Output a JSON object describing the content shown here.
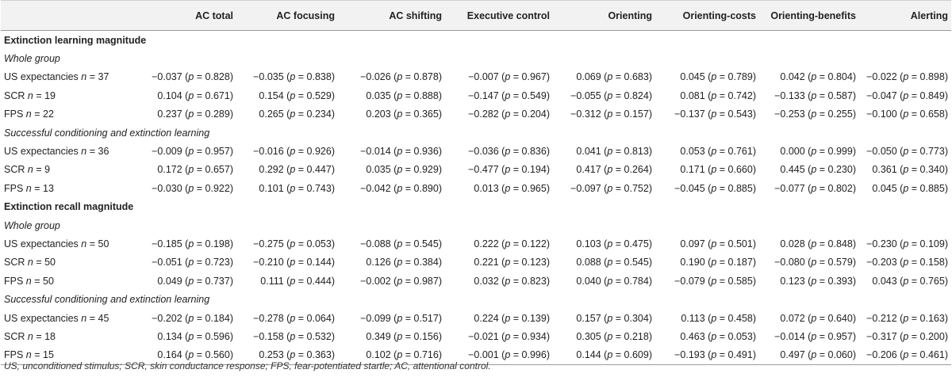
{
  "headers": [
    "",
    "AC total",
    "AC focusing",
    "AC shifting",
    "Executive control",
    "Orienting",
    "Orienting-costs",
    "Orienting-benefits",
    "Alerting"
  ],
  "sections": [
    {
      "title": "Extinction learning magnitude",
      "groups": [
        {
          "title": "Whole group",
          "rows": [
            {
              "label": "US expectancies",
              "n": "37",
              "cells": [
                [
                  "−0.037",
                  "0.828"
                ],
                [
                  "−0.035",
                  "0.838"
                ],
                [
                  "−0.026",
                  "0.878"
                ],
                [
                  "−0.007",
                  "0.967"
                ],
                [
                  "0.069",
                  "0.683"
                ],
                [
                  "0.045",
                  "0.789"
                ],
                [
                  "0.042",
                  "0.804"
                ],
                [
                  "−0.022",
                  "0.898"
                ]
              ]
            },
            {
              "label": "SCR",
              "n": "19",
              "cells": [
                [
                  "0.104",
                  "0.671"
                ],
                [
                  "0.154",
                  "0.529"
                ],
                [
                  "0.035",
                  "0.888"
                ],
                [
                  "−0.147",
                  "0.549"
                ],
                [
                  "−0.055",
                  "0.824"
                ],
                [
                  "0.081",
                  "0.742"
                ],
                [
                  "−0.133",
                  "0.587"
                ],
                [
                  "−0.047",
                  "0.849"
                ]
              ]
            },
            {
              "label": "FPS",
              "n": "22",
              "cells": [
                [
                  "0.237",
                  "0.289"
                ],
                [
                  "0.265",
                  "0.234"
                ],
                [
                  "0.203",
                  "0.365"
                ],
                [
                  "−0.282",
                  "0.204"
                ],
                [
                  "−0.312",
                  "0.157"
                ],
                [
                  "−0.137",
                  "0.543"
                ],
                [
                  "−0.253",
                  "0.255"
                ],
                [
                  "−0.100",
                  "0.658"
                ]
              ]
            }
          ]
        },
        {
          "title": "Successful conditioning and extinction learning",
          "rows": [
            {
              "label": "US expectancies",
              "n": "36",
              "cells": [
                [
                  "−0.009",
                  "0.957"
                ],
                [
                  "−0.016",
                  "0.926"
                ],
                [
                  "−0.014",
                  "0.936"
                ],
                [
                  "−0.036",
                  "0.836"
                ],
                [
                  "0.041",
                  "0.813"
                ],
                [
                  "0.053",
                  "0.761"
                ],
                [
                  "0.000",
                  "0.999"
                ],
                [
                  "−0.050",
                  "0.773"
                ]
              ]
            },
            {
              "label": "SCR",
              "n": "9",
              "cells": [
                [
                  "0.172",
                  "0.657"
                ],
                [
                  "0.292",
                  "0.447"
                ],
                [
                  "0.035",
                  "0.929"
                ],
                [
                  "−0.477",
                  "0.194"
                ],
                [
                  "0.417",
                  "0.264"
                ],
                [
                  "0.171",
                  "0.660"
                ],
                [
                  "0.445",
                  "0.230"
                ],
                [
                  "0.361",
                  "0.340"
                ]
              ]
            },
            {
              "label": "FPS",
              "n": "13",
              "cells": [
                [
                  "−0.030",
                  "0.922"
                ],
                [
                  "0.101",
                  "0.743"
                ],
                [
                  "−0.042",
                  "0.890"
                ],
                [
                  "0.013",
                  "0.965"
                ],
                [
                  "−0.097",
                  "0.752"
                ],
                [
                  "−0.045",
                  "0.885"
                ],
                [
                  "−0.077",
                  "0.802"
                ],
                [
                  "0.045",
                  "0.885"
                ]
              ]
            }
          ]
        }
      ]
    },
    {
      "title": "Extinction recall magnitude",
      "groups": [
        {
          "title": "Whole group",
          "rows": [
            {
              "label": "US expectancies",
              "n": "50",
              "cells": [
                [
                  "−0.185",
                  "0.198"
                ],
                [
                  "−0.275",
                  "0.053"
                ],
                [
                  "−0.088",
                  "0.545"
                ],
                [
                  "0.222",
                  "0.122"
                ],
                [
                  "0.103",
                  "0.475"
                ],
                [
                  "0.097",
                  "0.501"
                ],
                [
                  "0.028",
                  "0.848"
                ],
                [
                  "−0.230",
                  "0.109"
                ]
              ]
            },
            {
              "label": "SCR",
              "n": "50",
              "cells": [
                [
                  "−0.051",
                  "0.723"
                ],
                [
                  "−0.210",
                  "0.144"
                ],
                [
                  "0.126",
                  "0.384"
                ],
                [
                  "0.221",
                  "0.123"
                ],
                [
                  "0.088",
                  "0.545"
                ],
                [
                  "0.190",
                  "0.187"
                ],
                [
                  "−0.080",
                  "0.579"
                ],
                [
                  "−0.203",
                  "0.158"
                ]
              ]
            },
            {
              "label": "FPS",
              "n": "50",
              "cells": [
                [
                  "0.049",
                  "0.737"
                ],
                [
                  "0.111",
                  "0.444"
                ],
                [
                  "−0.002",
                  "0.987"
                ],
                [
                  "0.032",
                  "0.823"
                ],
                [
                  "0.040",
                  "0.784"
                ],
                [
                  "−0.079",
                  "0.585"
                ],
                [
                  "0.123",
                  "0.393"
                ],
                [
                  "0.043",
                  "0.765"
                ]
              ]
            }
          ]
        },
        {
          "title": "Successful conditioning and extinction learning",
          "rows": [
            {
              "label": "US expectancies",
              "n": "45",
              "cells": [
                [
                  "−0.202",
                  "0.184"
                ],
                [
                  "−0.278",
                  "0.064"
                ],
                [
                  "−0.099",
                  "0.517"
                ],
                [
                  "0.224",
                  "0.139"
                ],
                [
                  "0.157",
                  "0.304"
                ],
                [
                  "0.113",
                  "0.458"
                ],
                [
                  "0.072",
                  "0.640"
                ],
                [
                  "−0.212",
                  "0.163"
                ]
              ]
            },
            {
              "label": "SCR",
              "n": "18",
              "cells": [
                [
                  "0.134",
                  "0.596"
                ],
                [
                  "−0.158",
                  "0.532"
                ],
                [
                  "0.349",
                  "0.156"
                ],
                [
                  "−0.021",
                  "0.934"
                ],
                [
                  "0.305",
                  "0.218"
                ],
                [
                  "0.463",
                  "0.053"
                ],
                [
                  "−0.014",
                  "0.957"
                ],
                [
                  "−0.317",
                  "0.200"
                ]
              ]
            },
            {
              "label": "FPS",
              "n": "15",
              "cells": [
                [
                  "0.164",
                  "0.560"
                ],
                [
                  "0.253",
                  "0.363"
                ],
                [
                  "0.102",
                  "0.716"
                ],
                [
                  "−0.001",
                  "0.996"
                ],
                [
                  "0.144",
                  "0.609"
                ],
                [
                  "−0.193",
                  "0.491"
                ],
                [
                  "0.497",
                  "0.060"
                ],
                [
                  "−0.206",
                  "0.461"
                ]
              ]
            }
          ]
        }
      ]
    }
  ],
  "footnote": "US, unconditioned stimulus; SCR, skin conductance response; FPS, fear-potentiated startle; AC, attentional control."
}
